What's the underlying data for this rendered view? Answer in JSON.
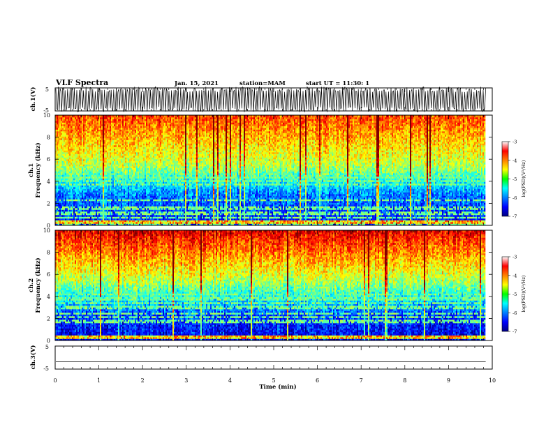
{
  "header": {
    "title": "VLF Spectra",
    "date": "Jan. 15, 2021",
    "station": "station=MAM",
    "start": "start UT =  11:30: 1"
  },
  "chart_data": [
    {
      "type": "line",
      "name": "ch1-waveform",
      "ylabel": "ch.1(V)",
      "ylim": [
        -5,
        5
      ],
      "yticks": [
        "5",
        "-5"
      ],
      "description_values": "dense oscillating waveform saturating between about -5 and +5 V"
    },
    {
      "type": "heatmap",
      "name": "ch1-spectrogram",
      "ylabel": "ch.1  Frequency (kHz)",
      "ylim": [
        0,
        10
      ],
      "yticks": [
        "0",
        "2",
        "4",
        "6",
        "8",
        "10"
      ],
      "colorbar": {
        "label": "log(PSD)(V²/Hz)",
        "range": [
          -7,
          -3
        ],
        "ticks": [
          "-3",
          "-4",
          "-5",
          "-6",
          "-7"
        ]
      }
    },
    {
      "type": "heatmap",
      "name": "ch2-spectrogram",
      "ylabel": "ch.2  Frequency (kHz)",
      "ylim": [
        0,
        10
      ],
      "yticks": [
        "0",
        "2",
        "4",
        "6",
        "8",
        "10"
      ],
      "colorbar": {
        "label": "log(PSD)(V²/Hz)",
        "range": [
          -7,
          -3
        ],
        "ticks": [
          "-3",
          "-4",
          "-5",
          "-6",
          "-7"
        ]
      }
    },
    {
      "type": "line",
      "name": "ch3-waveform",
      "ylabel": "ch.3(V)",
      "ylim": [
        -5,
        5
      ],
      "yticks": [
        "5",
        "-5"
      ],
      "y_values": [
        -1.8
      ],
      "description_values": "flat line near -1.8 V"
    }
  ],
  "xaxis": {
    "label": "Time (min)",
    "range": [
      0,
      10
    ],
    "ticks": [
      "0",
      "1",
      "2",
      "3",
      "4",
      "5",
      "6",
      "7",
      "8",
      "9",
      "10"
    ],
    "data_end": 9.85
  },
  "labels": {
    "ch1_line1": "ch.1",
    "ch1_line2": "Frequency (kHz)",
    "ch2_line1": "ch.2",
    "ch2_line2": "Frequency (kHz)",
    "cb_label": "log(PSD)(V²/Hz)"
  }
}
